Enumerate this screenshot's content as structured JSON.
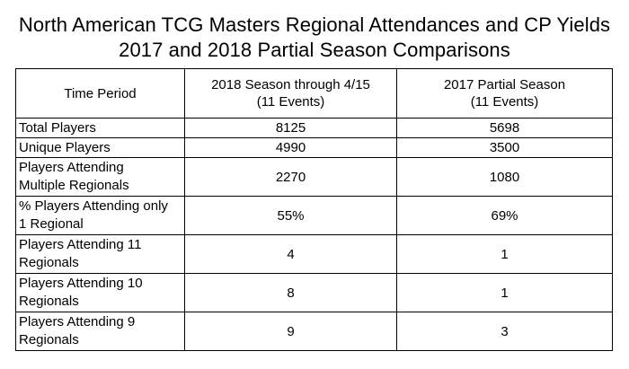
{
  "title": {
    "line1": "North American TCG Masters Regional Attendances and CP Yields",
    "line2": "2017 and 2018 Partial Season Comparisons"
  },
  "table": {
    "header": {
      "col1": "Time Period",
      "col2_line1": "2018 Season through 4/15",
      "col2_line2": "(11 Events)",
      "col3_line1": "2017 Partial Season",
      "col3_line2": "(11 Events)"
    },
    "rows": [
      {
        "label_line1": "Total Players",
        "label_line2": "",
        "v2018": "8125",
        "v2017": "5698"
      },
      {
        "label_line1": "Unique Players",
        "label_line2": "",
        "v2018": "4990",
        "v2017": "3500"
      },
      {
        "label_line1": "Players Attending",
        "label_line2": "Multiple Regionals",
        "v2018": "2270",
        "v2017": "1080"
      },
      {
        "label_line1": "% Players Attending only",
        "label_line2": "1 Regional",
        "v2018": "55%",
        "v2017": "69%"
      },
      {
        "label_line1": "Players Attending 11",
        "label_line2": "Regionals",
        "v2018": "4",
        "v2017": "1"
      },
      {
        "label_line1": "Players Attending 10",
        "label_line2": "Regionals",
        "v2018": "8",
        "v2017": "1"
      },
      {
        "label_line1": "Players Attending 9",
        "label_line2": "Regionals",
        "v2018": "9",
        "v2017": "3"
      }
    ]
  }
}
